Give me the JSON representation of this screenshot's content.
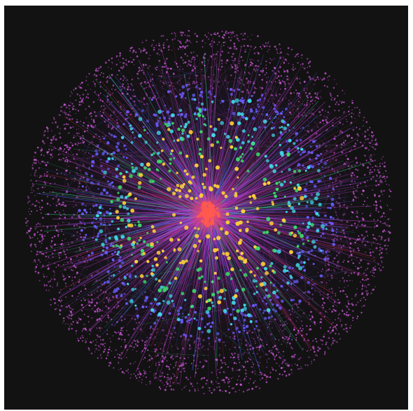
{
  "colors": {
    "background": "#121212",
    "frame": "#ffffff",
    "core": "#ff5a4e",
    "inner_nodes": "#ffd23a",
    "green_nodes": "#3ddc6a",
    "cyan_nodes": "#41d9e8",
    "blue_nodes": "#6a5cff",
    "outer_nodes": "#e15ff0",
    "edge_magenta": "#c43cd6",
    "edge_red": "#c0253e",
    "edge_blue": "#4a5cff",
    "edge_green": "#35c98a"
  },
  "network": {
    "layers": [
      {
        "name": "core",
        "color_key": "core"
      },
      {
        "name": "inner",
        "color_key": "inner_nodes"
      },
      {
        "name": "middle-green",
        "color_key": "green_nodes"
      },
      {
        "name": "middle-cyan",
        "color_key": "cyan_nodes"
      },
      {
        "name": "middle-blue",
        "color_key": "blue_nodes"
      },
      {
        "name": "periphery",
        "color_key": "outer_nodes"
      }
    ]
  }
}
